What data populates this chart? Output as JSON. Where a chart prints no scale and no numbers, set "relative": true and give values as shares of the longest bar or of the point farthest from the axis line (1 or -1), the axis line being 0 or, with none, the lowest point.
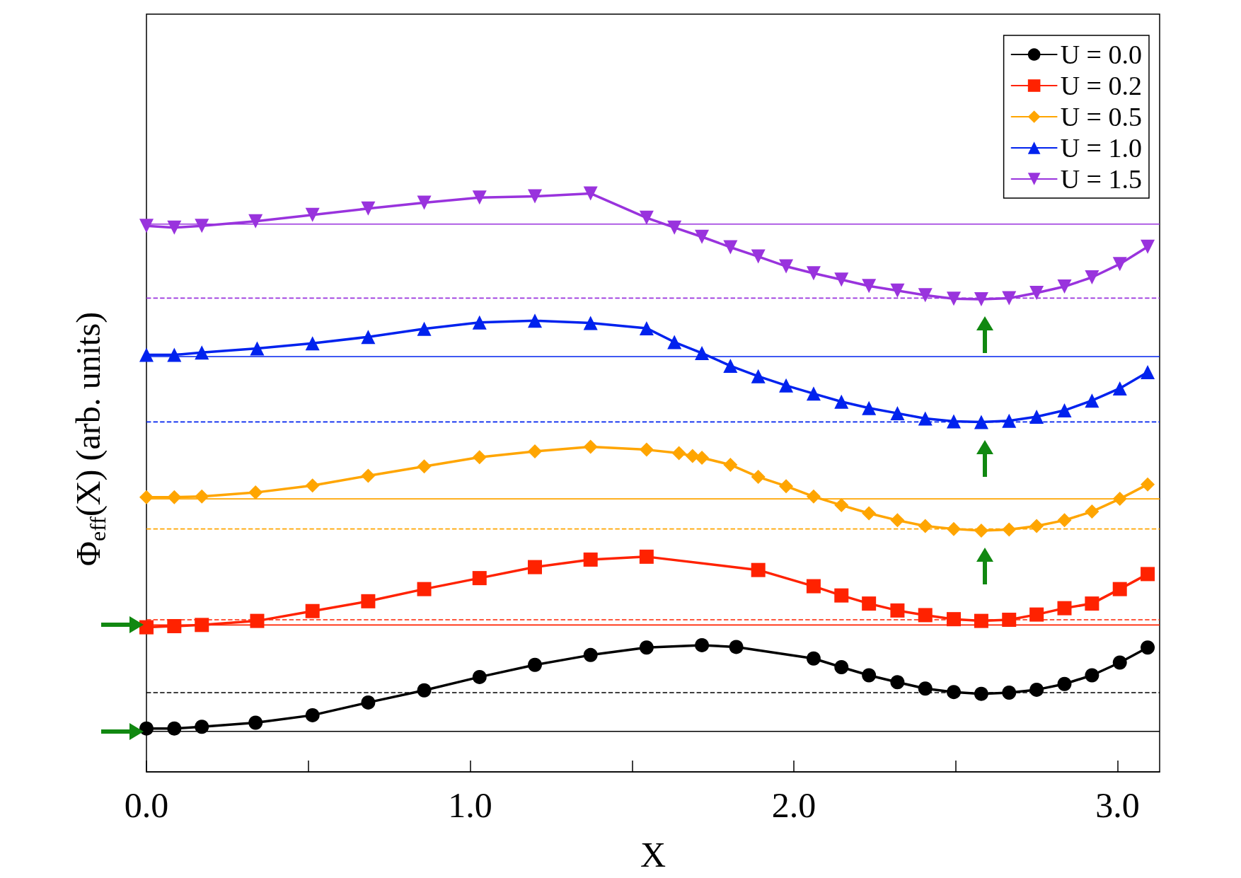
{
  "chart_data": {
    "type": "line",
    "relative": true,
    "xlabel": "X",
    "ylabel": "Φ$_{eff}$(X) (arb. units)",
    "xlim": [
      0,
      3.13
    ],
    "xticks": [
      {
        "value": 0,
        "label": "0.0"
      },
      {
        "value": 0.5,
        "label": null
      },
      {
        "value": 1,
        "label": "1.0"
      },
      {
        "value": 1.5,
        "label": null
      },
      {
        "value": 2,
        "label": "2.0"
      },
      {
        "value": 2.5,
        "label": null
      },
      {
        "value": 3,
        "label": "3.0"
      }
    ],
    "legend": "top right",
    "grid": false,
    "line_style": "solid",
    "series": [
      {
        "name": "U = 0.0",
        "color": "#000000",
        "marker": "circle",
        "x": [
          0,
          0.086,
          0.171,
          0.337,
          0.513,
          0.685,
          0.858,
          1.029,
          1.2,
          1.372,
          1.545,
          1.716,
          1.822,
          2.061,
          2.147,
          2.232,
          2.32,
          2.406,
          2.494,
          2.579,
          2.665,
          2.75,
          2.836,
          2.921,
          3.007,
          3.093
        ],
        "values": [
          0.075,
          0.075,
          0.078,
          0.085,
          0.098,
          0.12,
          0.141,
          0.164,
          0.185,
          0.202,
          0.215,
          0.219,
          0.216,
          0.196,
          0.181,
          0.167,
          0.155,
          0.144,
          0.138,
          0.135,
          0.137,
          0.142,
          0.152,
          0.167,
          0.189,
          0.215
        ]
      },
      {
        "name": "U = 0.2",
        "color": "#ff2200",
        "marker": "square",
        "x": [
          0,
          0.086,
          0.171,
          0.342,
          0.513,
          0.685,
          0.858,
          1.029,
          1.2,
          1.372,
          1.545,
          1.89,
          2.061,
          2.147,
          2.232,
          2.32,
          2.406,
          2.494,
          2.579,
          2.665,
          2.75,
          2.836,
          2.921,
          3.007,
          3.093
        ],
        "values": [
          0.25,
          0.252,
          0.254,
          0.261,
          0.278,
          0.295,
          0.316,
          0.335,
          0.354,
          0.367,
          0.372,
          0.349,
          0.321,
          0.305,
          0.291,
          0.279,
          0.271,
          0.264,
          0.261,
          0.263,
          0.272,
          0.283,
          0.291,
          0.316,
          0.342
        ]
      },
      {
        "name": "U = 0.5",
        "color": "#ffa500",
        "marker": "diamond",
        "x": [
          0,
          0.086,
          0.171,
          0.337,
          0.513,
          0.685,
          0.858,
          1.029,
          1.2,
          1.372,
          1.545,
          1.645,
          1.687,
          1.716,
          1.804,
          1.89,
          1.976,
          2.061,
          2.147,
          2.232,
          2.32,
          2.406,
          2.494,
          2.579,
          2.665,
          2.75,
          2.836,
          2.921,
          3.007,
          3.093
        ],
        "values": [
          0.475,
          0.475,
          0.476,
          0.483,
          0.495,
          0.512,
          0.528,
          0.544,
          0.554,
          0.562,
          0.557,
          0.551,
          0.546,
          0.543,
          0.531,
          0.51,
          0.494,
          0.476,
          0.461,
          0.447,
          0.435,
          0.425,
          0.42,
          0.417,
          0.419,
          0.425,
          0.435,
          0.45,
          0.472,
          0.497
        ]
      },
      {
        "name": "U = 1.0",
        "color": "#0022ee",
        "marker": "triangle",
        "x": [
          0,
          0.086,
          0.171,
          0.342,
          0.513,
          0.685,
          0.858,
          1.029,
          1.2,
          1.372,
          1.545,
          1.631,
          1.716,
          1.804,
          1.89,
          1.976,
          2.061,
          2.147,
          2.232,
          2.32,
          2.406,
          2.494,
          2.579,
          2.665,
          2.75,
          2.836,
          2.921,
          3.007,
          3.093
        ],
        "values": [
          0.721,
          0.721,
          0.725,
          0.732,
          0.741,
          0.752,
          0.766,
          0.777,
          0.78,
          0.776,
          0.767,
          0.743,
          0.724,
          0.702,
          0.684,
          0.668,
          0.654,
          0.64,
          0.629,
          0.62,
          0.611,
          0.606,
          0.605,
          0.607,
          0.614,
          0.625,
          0.642,
          0.663,
          0.691
        ]
      },
      {
        "name": "U = 1.5",
        "color": "#9933dd",
        "marker": "triangle-down",
        "x": [
          0,
          0.086,
          0.171,
          0.337,
          0.513,
          0.685,
          0.858,
          1.029,
          1.2,
          1.372,
          1.545,
          1.631,
          1.716,
          1.804,
          1.89,
          1.976,
          2.061,
          2.147,
          2.232,
          2.32,
          2.406,
          2.494,
          2.579,
          2.665,
          2.75,
          2.836,
          2.921,
          3.007,
          3.093
        ],
        "values": [
          0.944,
          0.941,
          0.944,
          0.952,
          0.963,
          0.974,
          0.984,
          0.993,
          0.995,
          1,
          0.958,
          0.941,
          0.925,
          0.907,
          0.891,
          0.874,
          0.862,
          0.851,
          0.84,
          0.832,
          0.824,
          0.818,
          0.817,
          0.819,
          0.828,
          0.839,
          0.855,
          0.878,
          0.908
        ]
      }
    ],
    "ref_lines": [
      {
        "axis": "y",
        "value": 0.07,
        "color": "#000000",
        "line_style": "solid"
      },
      {
        "axis": "y",
        "value": 0.137,
        "color": "#000000",
        "line_style": "dashed"
      },
      {
        "axis": "y",
        "value": 0.254,
        "color": "#ff2200",
        "line_style": "solid"
      },
      {
        "axis": "y",
        "value": 0.263,
        "color": "#ff2200",
        "line_style": "dashed"
      },
      {
        "axis": "y",
        "value": 0.472,
        "color": "#ffa500",
        "line_style": "solid"
      },
      {
        "axis": "y",
        "value": 0.42,
        "color": "#ffa500",
        "line_style": "dashed"
      },
      {
        "axis": "y",
        "value": 0.718,
        "color": "#0022ee",
        "line_style": "solid"
      },
      {
        "axis": "y",
        "value": 0.605,
        "color": "#0022ee",
        "line_style": "dashed"
      },
      {
        "axis": "y",
        "value": 0.947,
        "color": "#9933dd",
        "line_style": "solid"
      },
      {
        "axis": "y",
        "value": 0.819,
        "color": "#9933dd",
        "line_style": "dashed"
      }
    ]
  }
}
